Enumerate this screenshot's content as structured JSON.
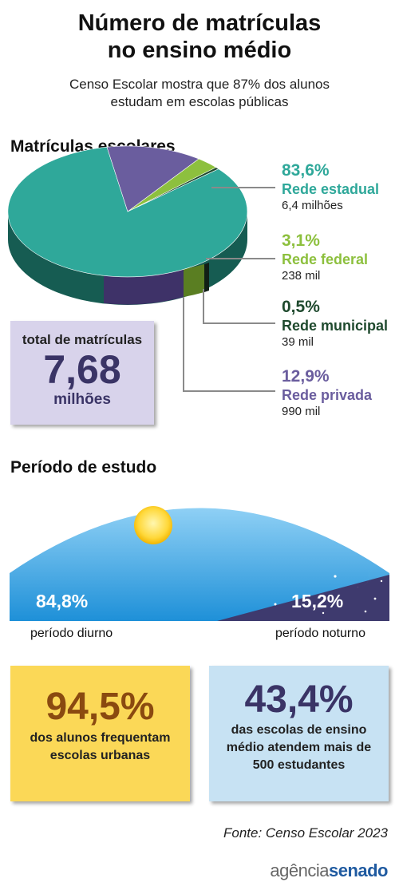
{
  "header": {
    "title_line1": "Número de matrículas",
    "title_line2": "no ensino médio",
    "subtitle_line1": "Censo Escolar mostra que 87% dos alunos",
    "subtitle_line2": "estudam em escolas públicas"
  },
  "chart_data": [
    {
      "type": "pie",
      "title": "Matrículas escolares",
      "slices": [
        {
          "pct_label": "83,6%",
          "name": "Rede estadual",
          "count": "6,4 milhões",
          "value": 83.6,
          "color": "#2fa89a"
        },
        {
          "pct_label": "3,1%",
          "name": "Rede federal",
          "count": "238 mil",
          "value": 3.1,
          "color": "#8dc03e"
        },
        {
          "pct_label": "0,5%",
          "name": "Rede municipal",
          "count": "39 mil",
          "value": 0.5,
          "color": "#1f4a2e"
        },
        {
          "pct_label": "12,9%",
          "name": "Rede privada",
          "count": "990 mil",
          "value": 12.9,
          "color": "#6a5d9e"
        }
      ],
      "total": {
        "label": "total de matrículas",
        "value": "7,68",
        "unit": "milhões"
      }
    },
    {
      "type": "area",
      "title": "Período de estudo",
      "segments": [
        {
          "pct_label": "84,8%",
          "name": "período diurno",
          "value": 84.8
        },
        {
          "pct_label": "15,2%",
          "name": "período noturno",
          "value": 15.2
        }
      ]
    }
  ],
  "stats": {
    "urban": {
      "value": "94,5%",
      "line1": "dos alunos frequentam",
      "line2": "escolas urbanas"
    },
    "large": {
      "value": "43,4%",
      "line1": "das escolas de ensino",
      "line2": "médio atendem mais de",
      "line3": "500 estudantes"
    }
  },
  "footer": {
    "source": "Fonte: Censo Escolar 2023",
    "logo_part1": "agência",
    "logo_part2": "senado"
  },
  "colors": {
    "estadual": "#2fa89a",
    "federal": "#8dc03e",
    "municipal": "#1f4a2e",
    "privada": "#6a5d9e",
    "sky": "#36a7e5",
    "night": "#3e3a6e",
    "yellow_box": "#fbd857",
    "blue_box": "#c7e2f3"
  }
}
